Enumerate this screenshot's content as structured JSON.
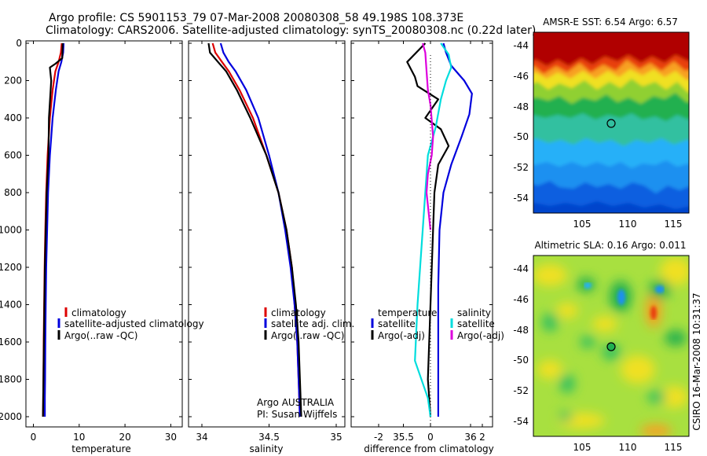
{
  "header": {
    "title_line1": "Argo profile: CS 5901153_79 07-Mar-2008 20080308_58 49.198S 108.373E",
    "title_line2": "Climatology: CARS2006. Satellite-adjusted climatology: synTS_20080308.nc (0.22d later)"
  },
  "colors": {
    "climatology": "#dd0000",
    "satellite": "#0000dd",
    "argo": "#000000",
    "salinity_satellite": "#00dddd",
    "salinity_argo": "#dd00dd"
  },
  "chart_data": [
    {
      "type": "line",
      "panel": "temperature",
      "xlabel": "temperature",
      "ylabel": "",
      "xlim": [
        -1,
        31
      ],
      "ylim": [
        2050,
        0
      ],
      "y_inverted": true,
      "xticks": [
        "0",
        "10",
        "20",
        "30"
      ],
      "yticks": [
        "0",
        "200",
        "400",
        "600",
        "800",
        "1000",
        "1200",
        "1400",
        "1600",
        "1800",
        "2000"
      ],
      "legend": [
        "climatology",
        "satellite-adjusted climatology",
        "Argo(..raw -QC)"
      ],
      "series": [
        {
          "name": "climatology",
          "color": "#dd0000",
          "x": [
            6.2,
            6.0,
            5.5,
            4.8,
            4.2,
            3.6,
            3.1,
            2.8,
            2.6,
            2.45,
            2.35,
            2.25,
            2.2,
            2.15,
            2.1
          ],
          "y": [
            0,
            50,
            100,
            150,
            250,
            400,
            600,
            800,
            1000,
            1200,
            1400,
            1600,
            1800,
            1900,
            2000
          ]
        },
        {
          "name": "satellite-adjusted climatology",
          "color": "#0000dd",
          "x": [
            6.6,
            6.5,
            6.1,
            5.5,
            4.9,
            4.2,
            3.6,
            3.2,
            3.0,
            2.8,
            2.7,
            2.6,
            2.55,
            2.5,
            2.5
          ],
          "y": [
            0,
            50,
            100,
            150,
            250,
            400,
            600,
            800,
            1000,
            1200,
            1400,
            1600,
            1800,
            1900,
            2000
          ]
        },
        {
          "name": "Argo(..raw -QC)",
          "color": "#000000",
          "x": [
            6.4,
            6.3,
            4.8,
            3.6,
            3.9,
            3.4,
            3.3,
            2.9,
            2.7,
            2.5,
            2.4,
            2.3,
            2.2,
            2.15,
            2.1
          ],
          "y": [
            0,
            80,
            110,
            130,
            200,
            400,
            600,
            800,
            1000,
            1200,
            1400,
            1600,
            1800,
            1900,
            2000
          ]
        }
      ]
    },
    {
      "type": "line",
      "panel": "salinity",
      "xlabel": "salinity",
      "ylabel": "",
      "xlim": [
        33.9,
        36.1
      ],
      "ylim": [
        2050,
        0
      ],
      "y_inverted": true,
      "xticks": [
        "34",
        "34.5",
        "35",
        "35.5",
        "36"
      ],
      "legend": [
        "climatology",
        "satellite adj. clim.",
        "Argo(..raw -QC)"
      ],
      "annotation": [
        "Argo AUSTRALIA",
        "PI: Susan Wijffels"
      ],
      "series": [
        {
          "name": "climatology",
          "color": "#dd0000",
          "x": [
            34.08,
            34.1,
            34.15,
            34.2,
            34.28,
            34.38,
            34.48,
            34.57,
            34.63,
            34.67,
            34.69,
            34.71,
            34.72,
            34.73
          ],
          "y": [
            0,
            50,
            100,
            150,
            250,
            400,
            600,
            800,
            1000,
            1200,
            1400,
            1600,
            1800,
            2000
          ]
        },
        {
          "name": "satellite adj. clim.",
          "color": "#0000dd",
          "x": [
            34.14,
            34.16,
            34.2,
            34.25,
            34.33,
            34.42,
            34.5,
            34.57,
            34.62,
            34.66,
            34.69,
            34.71,
            34.72,
            34.73
          ],
          "y": [
            0,
            50,
            100,
            150,
            250,
            400,
            600,
            800,
            1000,
            1200,
            1400,
            1600,
            1800,
            2000
          ]
        },
        {
          "name": "Argo(..raw -QC)",
          "color": "#000000",
          "x": [
            34.05,
            34.06,
            34.12,
            34.18,
            34.26,
            34.36,
            34.48,
            34.57,
            34.63,
            34.67,
            34.7,
            34.72,
            34.73,
            34.74
          ],
          "y": [
            0,
            50,
            100,
            150,
            250,
            400,
            600,
            800,
            1000,
            1200,
            1400,
            1600,
            1800,
            2000
          ]
        }
      ]
    },
    {
      "type": "line",
      "panel": "difference",
      "xlabel": "difference from climatology",
      "ylabel": "",
      "xlim": [
        -3,
        3
      ],
      "ylim": [
        2050,
        0
      ],
      "y_inverted": true,
      "xticks": [
        "-2",
        "0",
        "2"
      ],
      "legend_left": [
        "temperature",
        "satellite",
        "Argo(-adj)"
      ],
      "legend_right": [
        "salinity",
        "satellite",
        "Argo(-adj)"
      ],
      "series": [
        {
          "name": "temperature satellite",
          "color": "#0000dd",
          "x": [
            0.5,
            0.6,
            0.8,
            1.3,
            1.6,
            1.5,
            1.2,
            0.8,
            0.5,
            0.35,
            0.3,
            0.3,
            0.3,
            0.3
          ],
          "y": [
            0,
            50,
            120,
            200,
            270,
            380,
            500,
            650,
            800,
            1000,
            1300,
            1600,
            1800,
            2000
          ]
        },
        {
          "name": "temperature Argo(-adj)",
          "color": "#000000",
          "x": [
            -0.2,
            -0.9,
            -0.6,
            -0.5,
            0.3,
            -0.2,
            0.4,
            0.7,
            0.3,
            0.15,
            0.1,
            0.0,
            -0.1,
            0.0
          ],
          "y": [
            0,
            100,
            180,
            230,
            300,
            400,
            460,
            550,
            650,
            800,
            1000,
            1400,
            1800,
            2000
          ]
        },
        {
          "name": "salinity satellite",
          "color": "#00dddd",
          "x": [
            0.4,
            0.7,
            0.8,
            0.6,
            0.4,
            0.2,
            -0.1,
            -0.2,
            -0.3,
            -0.4,
            -0.5,
            -0.6,
            -0.1,
            0.0
          ],
          "y": [
            0,
            60,
            130,
            200,
            300,
            450,
            600,
            800,
            1000,
            1200,
            1400,
            1700,
            1900,
            2000
          ]
        },
        {
          "name": "salinity Argo(-adj)",
          "color": "#dd00dd",
          "x": [
            -0.3,
            -0.2,
            -0.15,
            -0.1,
            0.0,
            0.1,
            0.05,
            -0.1,
            -0.15,
            0.0
          ],
          "y": [
            0,
            50,
            150,
            250,
            330,
            500,
            600,
            700,
            800,
            1000
          ]
        }
      ]
    },
    {
      "type": "heatmap",
      "panel": "sst_map",
      "title": "AMSR-E SST: 6.54 Argo: 6.57",
      "xlim": [
        101,
        116
      ],
      "ylim": [
        -55.5,
        -43
      ],
      "xticks": [
        "105",
        "110",
        "115"
      ],
      "yticks": [
        "-44",
        "-46",
        "-48",
        "-50",
        "-52",
        "-54"
      ],
      "marker": {
        "lon": 108.373,
        "lat": -49.198
      }
    },
    {
      "type": "heatmap",
      "panel": "sla_map",
      "title": "Altimetric SLA: 0.16 Argo: 0.011",
      "xlim": [
        101,
        116
      ],
      "ylim": [
        -55.5,
        -43
      ],
      "xticks": [
        "105",
        "110",
        "115"
      ],
      "yticks": [
        "-44",
        "-46",
        "-48",
        "-50",
        "-52",
        "-54"
      ],
      "marker": {
        "lon": 108.373,
        "lat": -49.198
      }
    }
  ],
  "footer": {
    "stamp": "CSIRO 16-Mar-2008 10:31:37"
  }
}
